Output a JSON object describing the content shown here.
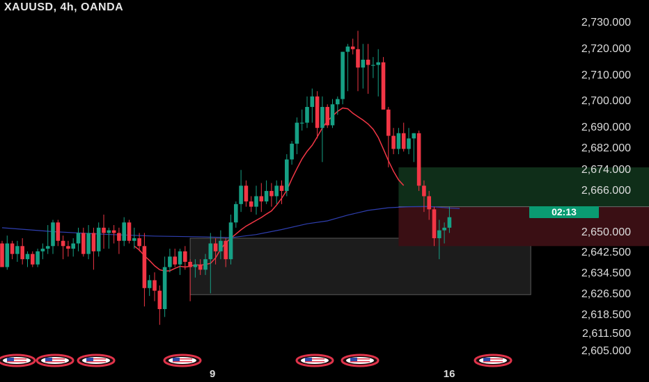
{
  "header": {
    "title": "XAUUSD, 4h, OANDA"
  },
  "countdown": "02:13",
  "colors": {
    "up": "#16a085",
    "down": "#f23645",
    "ema": "#f23645",
    "sma": "#2f3fb0",
    "timer_bg": "#0a9b72",
    "profit_zone": "#0f2e19",
    "loss_zone": "#3a0f14",
    "range_box": "#1c1c1c"
  },
  "chart_data": {
    "type": "candlestick",
    "symbol": "XAUUSD",
    "timeframe": "4h",
    "source": "OANDA",
    "ylim": [
      2603,
      2733
    ],
    "y_ticks": [
      "2,730.000",
      "2,720.000",
      "2,710.000",
      "2,700.000",
      "2,690.000",
      "2,682.000",
      "2,674.000",
      "2,666.000",
      "2,650.000",
      "2,642.500",
      "2,634.500",
      "2,626.500",
      "2,618.500",
      "2,611.500",
      "2,605.000"
    ],
    "y_tick_values": [
      2730,
      2720,
      2710,
      2700,
      2690,
      2682,
      2674,
      2666,
      2650,
      2642.5,
      2634.5,
      2626.5,
      2618.5,
      2611.5,
      2605
    ],
    "x_ticks": [
      {
        "label": "9",
        "index": 41.5
      },
      {
        "label": "16",
        "index": 87.5
      }
    ],
    "candles": [
      [
        2646,
        2647,
        2637,
        2637
      ],
      [
        2637,
        2649,
        2636,
        2646
      ],
      [
        2646,
        2647,
        2640,
        2642
      ],
      [
        2642,
        2647,
        2639,
        2645
      ],
      [
        2645,
        2648,
        2638,
        2640
      ],
      [
        2640,
        2643,
        2637,
        2642
      ],
      [
        2642,
        2643,
        2637,
        2638
      ],
      [
        2638,
        2644,
        2637,
        2643
      ],
      [
        2643,
        2646,
        2640,
        2644
      ],
      [
        2644,
        2653,
        2642,
        2645
      ],
      [
        2645,
        2655,
        2642,
        2654
      ],
      [
        2654,
        2655,
        2645,
        2647
      ],
      [
        2647,
        2649,
        2640,
        2645
      ],
      [
        2645,
        2647,
        2641,
        2644
      ],
      [
        2644,
        2648,
        2641,
        2646
      ],
      [
        2646,
        2652,
        2643,
        2650
      ],
      [
        2650,
        2652,
        2641,
        2642
      ],
      [
        2642,
        2653,
        2640,
        2650
      ],
      [
        2650,
        2652,
        2636,
        2643
      ],
      [
        2643,
        2654,
        2641,
        2652
      ],
      [
        2652,
        2657,
        2644,
        2650
      ],
      [
        2650,
        2652,
        2644,
        2651
      ],
      [
        2651,
        2653,
        2646,
        2650
      ],
      [
        2650,
        2652,
        2642,
        2647
      ],
      [
        2647,
        2656,
        2645,
        2654
      ],
      [
        2654,
        2655,
        2646,
        2647
      ],
      [
        2647,
        2652,
        2644,
        2648
      ],
      [
        2648,
        2650,
        2643,
        2645
      ],
      [
        2645,
        2650,
        2622,
        2629
      ],
      [
        2629,
        2634,
        2626,
        2632
      ],
      [
        2632,
        2635,
        2624,
        2628
      ],
      [
        2628,
        2630,
        2615,
        2621
      ],
      [
        2621,
        2641,
        2618,
        2637
      ],
      [
        2637,
        2644,
        2635,
        2641
      ],
      [
        2641,
        2644,
        2637,
        2638
      ],
      [
        2638,
        2644,
        2634,
        2643
      ],
      [
        2643,
        2645,
        2636,
        2639
      ],
      [
        2639,
        2640,
        2624,
        2637
      ],
      [
        2637,
        2640,
        2633,
        2638
      ],
      [
        2638,
        2640,
        2634,
        2636
      ],
      [
        2636,
        2642,
        2634,
        2640
      ],
      [
        2640,
        2650,
        2627,
        2646
      ],
      [
        2646,
        2648,
        2638,
        2643
      ],
      [
        2643,
        2651,
        2640,
        2647
      ],
      [
        2647,
        2648,
        2637,
        2640
      ],
      [
        2640,
        2657,
        2638,
        2654
      ],
      [
        2654,
        2662,
        2652,
        2661
      ],
      [
        2661,
        2674,
        2658,
        2668
      ],
      [
        2668,
        2670,
        2660,
        2662
      ],
      [
        2662,
        2664,
        2658,
        2660
      ],
      [
        2660,
        2668,
        2657,
        2664
      ],
      [
        2664,
        2669,
        2658,
        2662
      ],
      [
        2662,
        2670,
        2661,
        2666
      ],
      [
        2666,
        2669,
        2660,
        2664
      ],
      [
        2664,
        2670,
        2661,
        2668
      ],
      [
        2668,
        2670,
        2661,
        2666
      ],
      [
        2666,
        2680,
        2664,
        2678
      ],
      [
        2678,
        2685,
        2676,
        2684
      ],
      [
        2684,
        2694,
        2680,
        2692
      ],
      [
        2692,
        2697,
        2689,
        2692
      ],
      [
        2692,
        2702,
        2690,
        2698
      ],
      [
        2698,
        2705,
        2692,
        2702
      ],
      [
        2702,
        2704,
        2686,
        2690
      ],
      [
        2690,
        2702,
        2677,
        2698
      ],
      [
        2698,
        2699,
        2690,
        2691
      ],
      [
        2691,
        2701,
        2690,
        2699
      ],
      [
        2699,
        2702,
        2695,
        2701
      ],
      [
        2701,
        2719,
        2699,
        2719
      ],
      [
        2719,
        2722,
        2704,
        2721
      ],
      [
        2721,
        2724,
        2718,
        2720
      ],
      [
        2720,
        2727,
        2704,
        2713
      ],
      [
        2713,
        2722,
        2705,
        2716
      ],
      [
        2716,
        2722,
        2703,
        2714
      ],
      [
        2714,
        2717,
        2709,
        2714
      ],
      [
        2714,
        2720,
        2702,
        2715
      ],
      [
        2715,
        2717,
        2698,
        2697
      ],
      [
        2697,
        2698,
        2675,
        2687
      ],
      [
        2687,
        2690,
        2680,
        2682
      ],
      [
        2682,
        2690,
        2680,
        2688
      ],
      [
        2688,
        2692,
        2681,
        2682
      ],
      [
        2682,
        2690,
        2680,
        2686
      ],
      [
        2686,
        2688,
        2677,
        2688
      ],
      [
        2688,
        2689,
        2666,
        2668
      ],
      [
        2668,
        2670,
        2658,
        2664
      ],
      [
        2664,
        2666,
        2655,
        2659
      ],
      [
        2659,
        2660,
        2645,
        2648
      ],
      [
        2648,
        2655,
        2640,
        2651
      ],
      [
        2651,
        2654,
        2646,
        2652
      ],
      [
        2652,
        2660,
        2650,
        2656
      ]
    ],
    "ema_red": [
      [
        26,
        2645
      ],
      [
        27,
        2643.5
      ],
      [
        28,
        2641.3
      ],
      [
        29,
        2639.5
      ],
      [
        30,
        2637.5
      ],
      [
        31,
        2636
      ],
      [
        32,
        2635.5
      ],
      [
        33,
        2635.6
      ],
      [
        34,
        2636.5
      ],
      [
        35,
        2637.3
      ],
      [
        36,
        2637
      ],
      [
        37,
        2637.3
      ],
      [
        38,
        2637.9
      ],
      [
        39,
        2637.7
      ],
      [
        40,
        2638
      ],
      [
        41,
        2638.4
      ],
      [
        42,
        2640.5
      ],
      [
        43,
        2643.8
      ],
      [
        44,
        2646.3
      ],
      [
        45,
        2648
      ],
      [
        46,
        2649.6
      ],
      [
        47,
        2651.2
      ],
      [
        48,
        2652.6
      ],
      [
        49,
        2653.7
      ],
      [
        50,
        2654.8
      ],
      [
        51,
        2655.9
      ],
      [
        52,
        2657.2
      ],
      [
        53,
        2658.4
      ],
      [
        54,
        2660.6
      ],
      [
        55,
        2663.2
      ],
      [
        56,
        2666.2
      ],
      [
        57,
        2670.6
      ],
      [
        58,
        2674.5
      ],
      [
        59,
        2678.2
      ],
      [
        60,
        2681.1
      ],
      [
        61,
        2683.4
      ],
      [
        62,
        2686.6
      ],
      [
        63,
        2690
      ],
      [
        64,
        2692.6
      ],
      [
        65,
        2694.5
      ],
      [
        66,
        2696.3
      ],
      [
        67,
        2697.6
      ],
      [
        68,
        2697.3
      ],
      [
        69,
        2695.6
      ],
      [
        70,
        2694.3
      ],
      [
        71,
        2693
      ],
      [
        72,
        2691.5
      ],
      [
        73,
        2689.5
      ],
      [
        74,
        2686.4
      ],
      [
        75,
        2682
      ],
      [
        76,
        2677.5
      ],
      [
        77,
        2673.5
      ],
      [
        78,
        2670.2
      ],
      [
        79,
        2668.1
      ]
    ],
    "sma_blue": [
      [
        0,
        2652
      ],
      [
        10,
        2650.5
      ],
      [
        20,
        2649.5
      ],
      [
        30,
        2648.8
      ],
      [
        40,
        2648.5
      ],
      [
        45,
        2648.2
      ],
      [
        50,
        2649.4
      ],
      [
        55,
        2651.3
      ],
      [
        60,
        2653.5
      ],
      [
        64,
        2654.6
      ],
      [
        68,
        2656.8
      ],
      [
        72,
        2658.6
      ],
      [
        76,
        2659.6
      ],
      [
        80,
        2660
      ],
      [
        84,
        2660.1
      ],
      [
        88,
        2659.5
      ],
      [
        90,
        2659.3
      ]
    ],
    "range_box": {
      "x0": 37,
      "x1": 104,
      "y_top": 2648,
      "y_bottom": 2626.5
    },
    "profit_zone": {
      "x0": 78,
      "x1": 129,
      "y_top": 2675,
      "y_bottom": 2660
    },
    "loss_zone": {
      "x0": 78,
      "x1": 129,
      "y_top": 2660,
      "y_bottom": 2645
    }
  }
}
